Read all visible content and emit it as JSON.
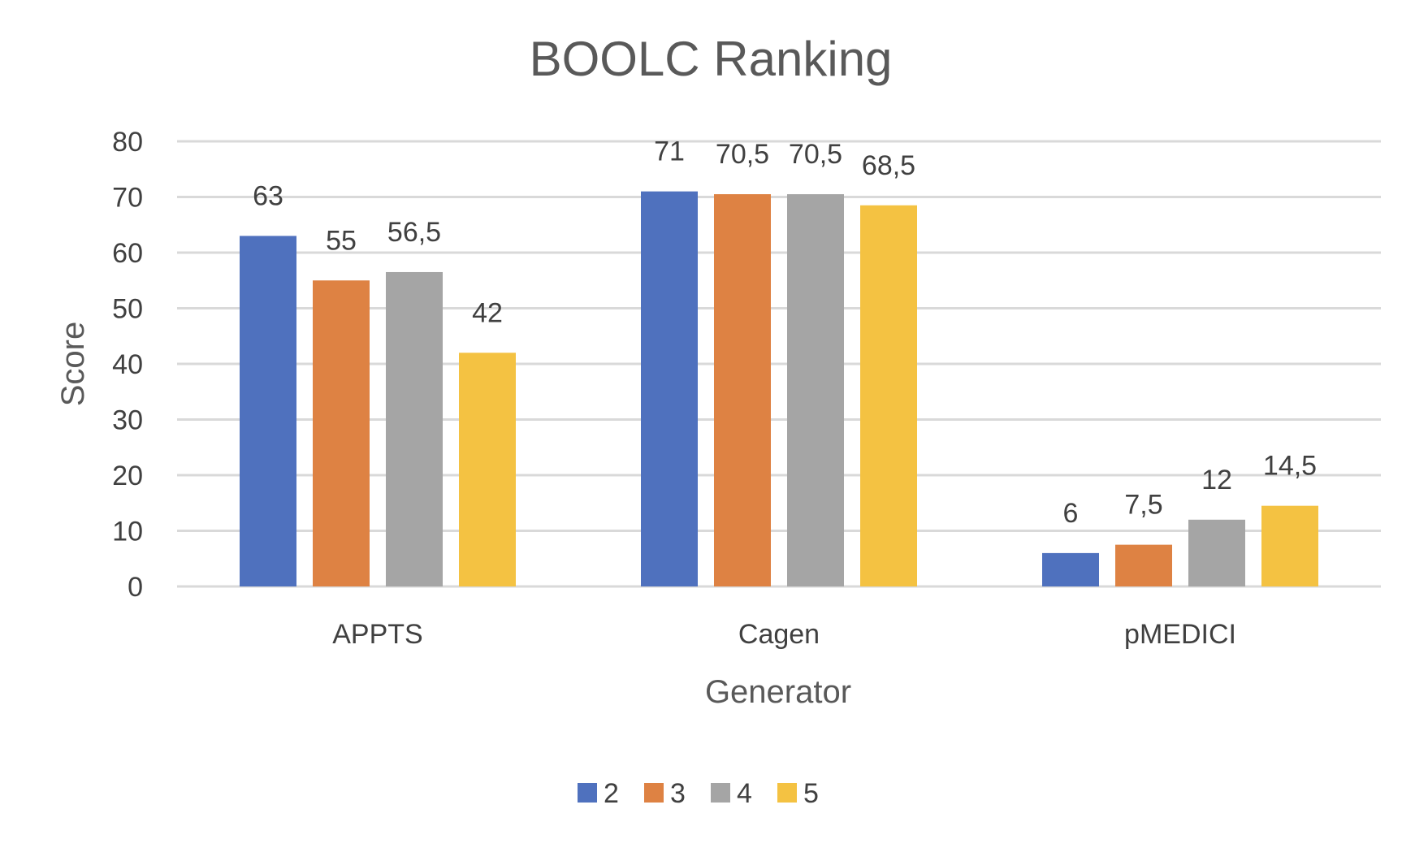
{
  "chart_data": {
    "type": "bar",
    "title": "BOOLC Ranking",
    "xlabel": "Generator",
    "ylabel": "Score",
    "ylim": [
      0,
      80
    ],
    "yticks": [
      0,
      10,
      20,
      30,
      40,
      50,
      60,
      70,
      80
    ],
    "grid": true,
    "legend_position": "bottom",
    "categories": [
      "APPTS",
      "Cagen",
      "pMEDICI"
    ],
    "series": [
      {
        "name": "2",
        "color": "#4f71be",
        "values": [
          63,
          71,
          6
        ],
        "labels": [
          "63",
          "71",
          "6"
        ]
      },
      {
        "name": "3",
        "color": "#de8243",
        "values": [
          55,
          70.5,
          7.5
        ],
        "labels": [
          "55",
          "70,5",
          "7,5"
        ]
      },
      {
        "name": "4",
        "color": "#a5a5a5",
        "values": [
          56.5,
          70.5,
          12
        ],
        "labels": [
          "56,5",
          "70,5",
          "12"
        ]
      },
      {
        "name": "5",
        "color": "#f4c242",
        "values": [
          42,
          68.5,
          14.5
        ],
        "labels": [
          "42",
          "68,5",
          "14,5"
        ]
      }
    ]
  }
}
